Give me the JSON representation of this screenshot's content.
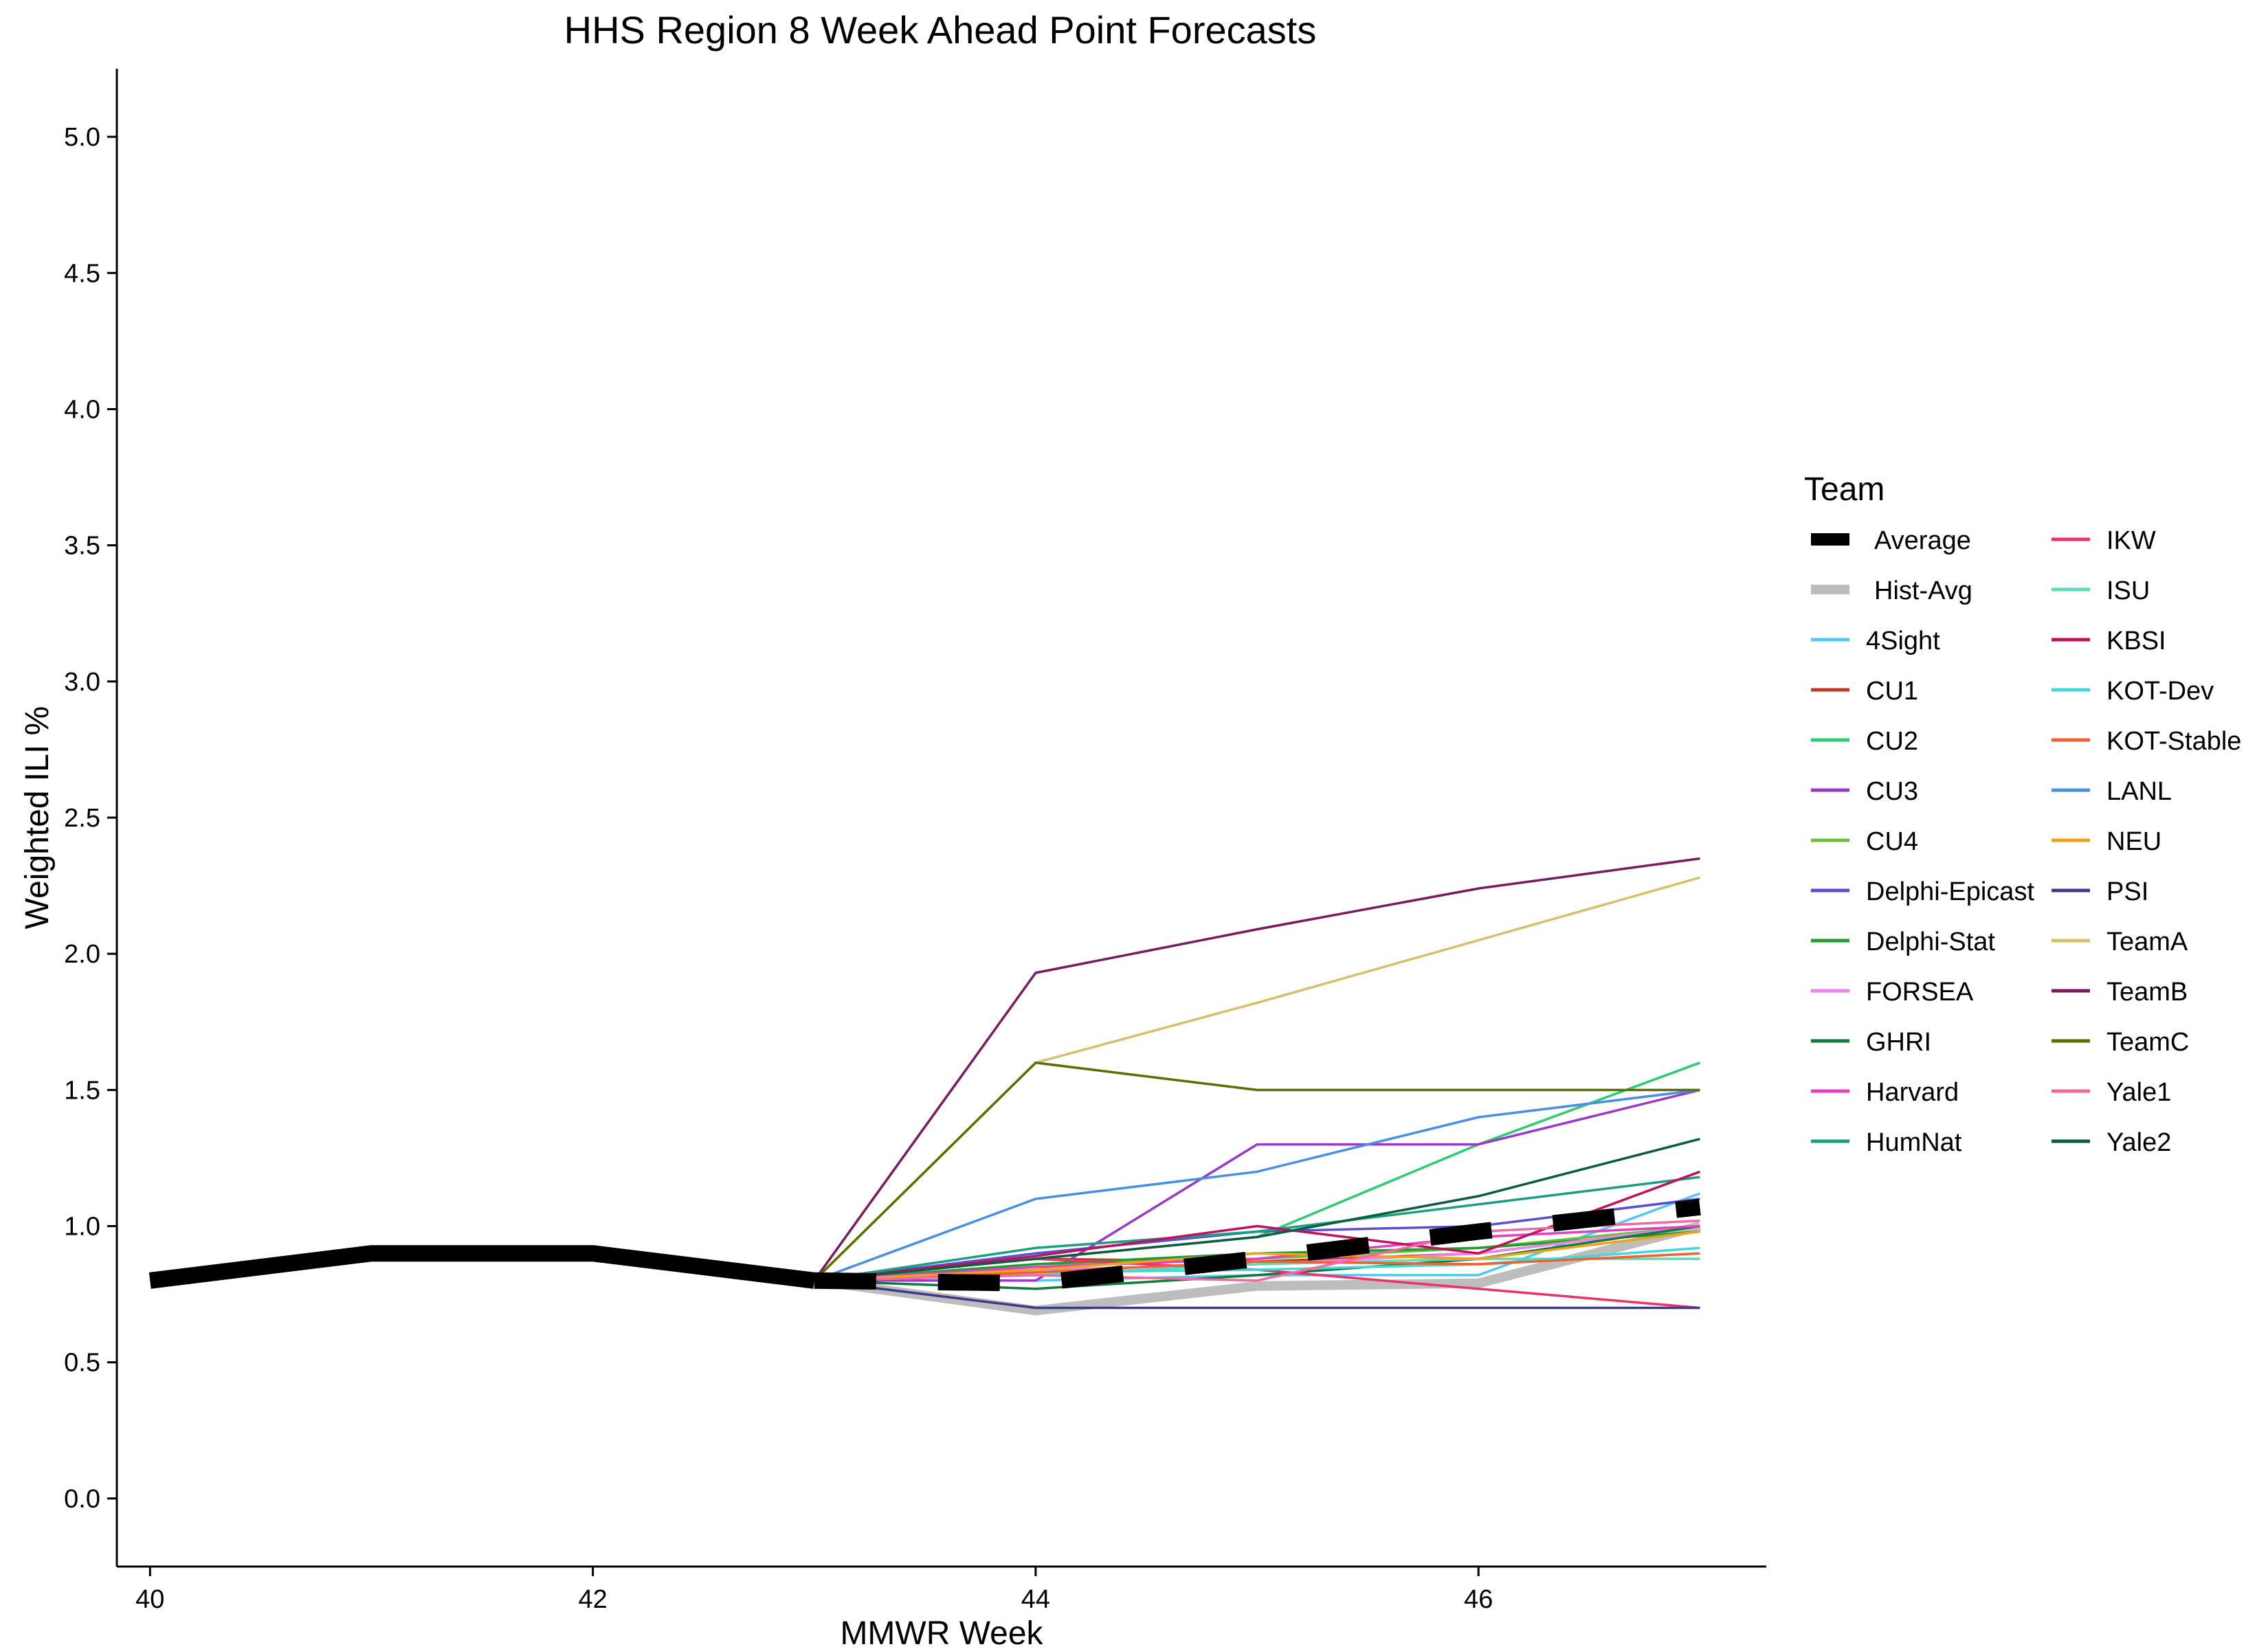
{
  "chart_data": {
    "type": "line",
    "title": "HHS Region 8 Week Ahead Point Forecasts",
    "xlabel": "MMWR Week",
    "ylabel": "Weighted ILI %",
    "xlim": [
      39.85,
      47.3
    ],
    "ylim": [
      -0.25,
      5.25
    ],
    "x_ticks": [
      40,
      42,
      44,
      46
    ],
    "x_tick_labels": [
      "40",
      "42",
      "44",
      "46"
    ],
    "y_ticks": [
      0.0,
      0.5,
      1.0,
      1.5,
      2.0,
      2.5,
      3.0,
      3.5,
      4.0,
      4.5,
      5.0
    ],
    "y_tick_labels": [
      "0.0",
      "0.5",
      "1.0",
      "1.5",
      "2.0",
      "2.5",
      "3.0",
      "3.5",
      "4.0",
      "4.5",
      "5.0"
    ],
    "grid": false,
    "legend_title": "Team",
    "legend_position": "right",
    "observed": {
      "x": [
        40,
        41,
        42,
        43
      ],
      "y": [
        0.8,
        0.9,
        0.9,
        0.8
      ]
    },
    "forecast_x": [
      43,
      44,
      45,
      46,
      47
    ],
    "series": [
      {
        "name": "Average",
        "color": "#000000",
        "style": "dashed-thick",
        "values": [
          0.8,
          0.79,
          0.88,
          0.98,
          1.07
        ]
      },
      {
        "name": "Hist-Avg",
        "color": "#bdbdbd",
        "style": "thick",
        "values": [
          0.8,
          0.69,
          0.78,
          0.79,
          1.0
        ]
      },
      {
        "name": "4Sight",
        "color": "#56c8f0",
        "values": [
          0.8,
          0.8,
          0.82,
          0.82,
          1.12
        ]
      },
      {
        "name": "CU1",
        "color": "#c0392b",
        "values": [
          0.8,
          0.88,
          0.87,
          0.9,
          1.0
        ]
      },
      {
        "name": "CU2",
        "color": "#2ecc71",
        "values": [
          0.8,
          0.88,
          0.96,
          1.3,
          1.6
        ]
      },
      {
        "name": "CU3",
        "color": "#9b38c7",
        "values": [
          0.8,
          0.8,
          1.3,
          1.3,
          1.5
        ]
      },
      {
        "name": "CU4",
        "color": "#6abf40",
        "values": [
          0.8,
          0.86,
          0.88,
          0.92,
          1.0
        ]
      },
      {
        "name": "Delphi-Epicast",
        "color": "#5b4fd1",
        "values": [
          0.8,
          0.9,
          0.98,
          1.0,
          1.1
        ]
      },
      {
        "name": "Delphi-Stat",
        "color": "#1e9e2f",
        "values": [
          0.8,
          0.86,
          0.9,
          0.92,
          0.98
        ]
      },
      {
        "name": "FORSEA",
        "color": "#ee82ee",
        "values": [
          0.8,
          0.84,
          0.86,
          0.9,
          1.0
        ]
      },
      {
        "name": "GHRI",
        "color": "#117a3c",
        "values": [
          0.8,
          0.77,
          0.82,
          0.88,
          1.0
        ]
      },
      {
        "name": "Harvard",
        "color": "#e040c0",
        "values": [
          0.8,
          0.85,
          0.88,
          0.96,
          1.0
        ]
      },
      {
        "name": "HumNat",
        "color": "#1a9e82",
        "values": [
          0.8,
          0.92,
          0.98,
          1.08,
          1.18
        ]
      },
      {
        "name": "IKW",
        "color": "#f0306a",
        "values": [
          0.8,
          0.88,
          0.84,
          0.77,
          0.7
        ]
      },
      {
        "name": "ISU",
        "color": "#60d8b8",
        "values": [
          0.8,
          0.82,
          0.86,
          0.88,
          0.88
        ]
      },
      {
        "name": "KBSI",
        "color": "#c0105e",
        "values": [
          0.8,
          0.89,
          1.0,
          0.9,
          1.2
        ]
      },
      {
        "name": "KOT-Dev",
        "color": "#40d8d8",
        "values": [
          0.8,
          0.83,
          0.84,
          0.86,
          0.92
        ]
      },
      {
        "name": "KOT-Stable",
        "color": "#f06030",
        "values": [
          0.8,
          0.83,
          0.87,
          0.86,
          0.9
        ]
      },
      {
        "name": "LANL",
        "color": "#4a90e2",
        "values": [
          0.8,
          1.1,
          1.2,
          1.4,
          1.5
        ]
      },
      {
        "name": "NEU",
        "color": "#f0a020",
        "values": [
          0.8,
          0.84,
          0.9,
          0.88,
          0.98
        ]
      },
      {
        "name": "PSI",
        "color": "#3b3b8a",
        "values": [
          0.8,
          0.7,
          0.7,
          0.7,
          0.7
        ]
      },
      {
        "name": "TeamA",
        "color": "#d8c06a",
        "values": [
          0.8,
          1.6,
          1.82,
          2.05,
          2.28
        ]
      },
      {
        "name": "TeamB",
        "color": "#7a1a60",
        "values": [
          0.8,
          1.93,
          2.09,
          2.24,
          2.35
        ]
      },
      {
        "name": "TeamC",
        "color": "#5c6e00",
        "values": [
          0.8,
          1.6,
          1.5,
          1.5,
          1.5
        ]
      },
      {
        "name": "Yale1",
        "color": "#f06aa0",
        "values": [
          0.8,
          0.82,
          0.8,
          0.98,
          1.02
        ]
      },
      {
        "name": "Yale2",
        "color": "#0d5c3e",
        "values": [
          0.8,
          0.88,
          0.96,
          1.11,
          1.32
        ]
      }
    ]
  }
}
